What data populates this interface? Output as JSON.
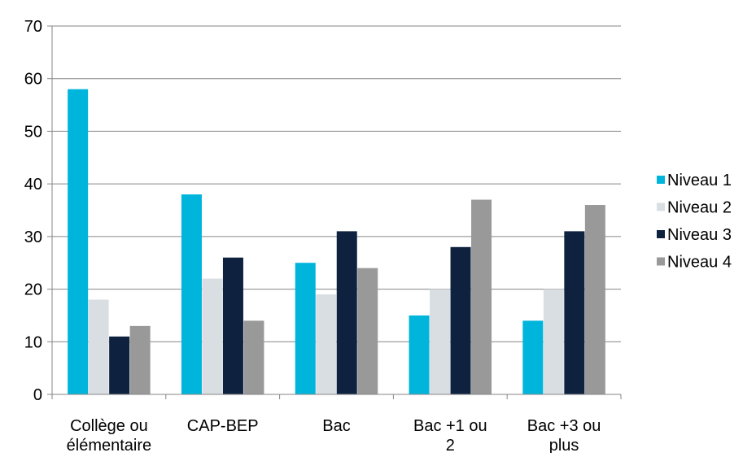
{
  "chart_data": {
    "type": "bar",
    "title": "",
    "xlabel": "",
    "ylabel": "",
    "categories": [
      [
        "Collège ou",
        "élémentaire"
      ],
      [
        "CAP-BEP"
      ],
      [
        "Bac"
      ],
      [
        "Bac +1 ou",
        "2"
      ],
      [
        "Bac +3 ou",
        "plus"
      ]
    ],
    "series": [
      {
        "name": "Niveau 1",
        "color": "#00b5dc",
        "values": [
          58,
          38,
          25,
          15,
          14
        ]
      },
      {
        "name": "Niveau 2",
        "color": "#d9dee2",
        "values": [
          18,
          22,
          19,
          20,
          20
        ]
      },
      {
        "name": "Niveau 3",
        "color": "#0e2240",
        "values": [
          11,
          26,
          31,
          28,
          31
        ]
      },
      {
        "name": "Niveau 4",
        "color": "#999999",
        "values": [
          13,
          14,
          24,
          37,
          36
        ]
      }
    ],
    "ylim": [
      0,
      70
    ],
    "yticks": [
      0,
      10,
      20,
      30,
      40,
      50,
      60,
      70
    ],
    "grid": true,
    "legend": "right",
    "gridline_color": "#868686",
    "axis_color": "#868686"
  }
}
